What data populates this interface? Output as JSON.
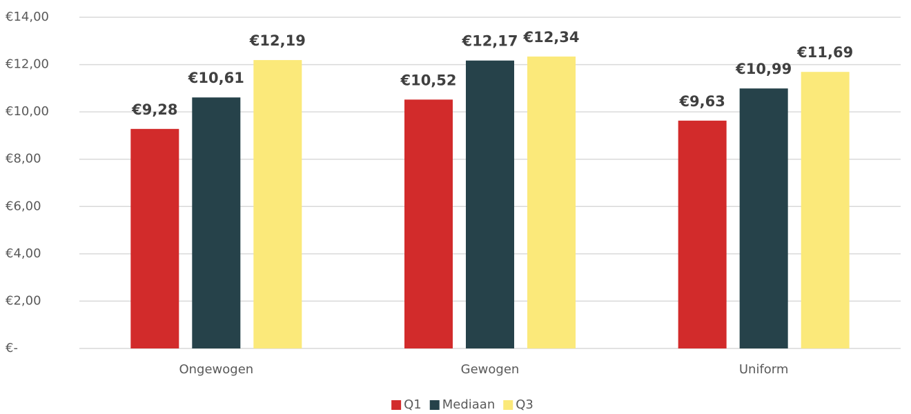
{
  "chart_data": {
    "type": "bar",
    "categories": [
      "Ongewogen",
      "Gewogen",
      "Uniform"
    ],
    "series": [
      {
        "name": "Q1",
        "color": "#d22b2b",
        "values": [
          9.28,
          10.52,
          9.63
        ],
        "value_labels": [
          "€9,28",
          "€10,52",
          "€9,63"
        ]
      },
      {
        "name": "Mediaan",
        "color": "#26424a",
        "values": [
          10.61,
          12.17,
          10.99
        ],
        "value_labels": [
          "€10,61",
          "€12,17",
          "€10,99"
        ]
      },
      {
        "name": "Q3",
        "color": "#fbe97a",
        "values": [
          12.19,
          12.34,
          11.69
        ],
        "value_labels": [
          "€12,19",
          "€12,34",
          "€11,69"
        ]
      }
    ],
    "ylim": [
      0,
      14
    ],
    "yticks": [
      {
        "value": 0,
        "label": "€-"
      },
      {
        "value": 2,
        "label": "€2,00"
      },
      {
        "value": 4,
        "label": "€4,00"
      },
      {
        "value": 6,
        "label": "€6,00"
      },
      {
        "value": 8,
        "label": "€8,00"
      },
      {
        "value": 10,
        "label": "€10,00"
      },
      {
        "value": 12,
        "label": "€12,00"
      },
      {
        "value": 14,
        "label": "€14,00"
      }
    ],
    "grid": true,
    "legend": "bottom"
  }
}
